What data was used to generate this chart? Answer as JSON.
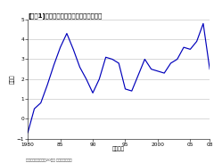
{
  "title": "[図表1]経常収支の対国内総生産比の推移",
  "ylabel": "（％）",
  "xlabel": "（年度）",
  "source": "資料：内閣府「平成20年度 国民経済計算」",
  "ylim": [
    -1,
    5
  ],
  "yticks": [
    -1,
    0,
    1,
    2,
    3,
    4,
    5
  ],
  "xtick_positions": [
    1980,
    1985,
    1990,
    1995,
    2000,
    2005,
    2008
  ],
  "xtick_labels": [
    "1980",
    "85",
    "90",
    "95",
    "2000",
    "05",
    "08"
  ],
  "line_color": "#0000bb",
  "background_color": "#ffffff",
  "grid_color": "#bbbbbb",
  "x": [
    1980,
    1981,
    1982,
    1983,
    1984,
    1985,
    1986,
    1987,
    1988,
    1989,
    1990,
    1991,
    1992,
    1993,
    1994,
    1995,
    1996,
    1997,
    1998,
    1999,
    2000,
    2001,
    2002,
    2003,
    2004,
    2005,
    2006,
    2007,
    2008
  ],
  "y": [
    -0.7,
    0.5,
    0.8,
    1.7,
    2.7,
    3.6,
    4.3,
    3.5,
    2.6,
    2.0,
    1.3,
    2.0,
    3.1,
    3.0,
    2.8,
    1.5,
    1.4,
    2.2,
    3.0,
    2.5,
    2.4,
    2.3,
    2.8,
    3.0,
    3.6,
    3.5,
    3.9,
    4.8,
    2.5
  ]
}
